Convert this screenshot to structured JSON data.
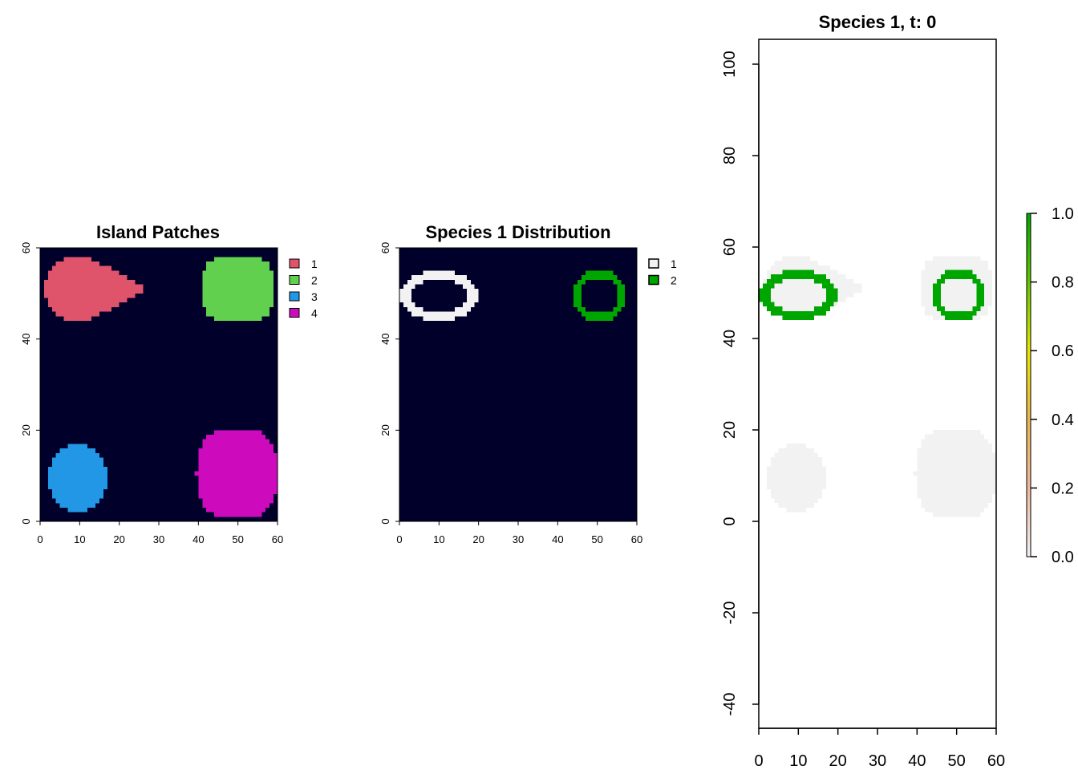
{
  "chart_data": [
    {
      "type": "heatmap",
      "title": "Island Patches",
      "xlim": [
        0,
        60
      ],
      "ylim": [
        0,
        60
      ],
      "xticks": [
        0,
        10,
        20,
        30,
        40,
        50,
        60
      ],
      "yticks": [
        0,
        20,
        40,
        60
      ],
      "background_color": "#00002B",
      "legend": [
        {
          "label": "1",
          "color": "#DF536B"
        },
        {
          "label": "2",
          "color": "#61D04F"
        },
        {
          "label": "3",
          "color": "#2297E6"
        },
        {
          "label": "4",
          "color": "#CD0BBC"
        }
      ],
      "patches": [
        {
          "label": "1",
          "shape": "teardrop",
          "x_range": [
            1,
            27.5
          ],
          "y_range": [
            43.5,
            58.5
          ]
        },
        {
          "label": "2",
          "shape": "blob",
          "x_range": [
            40.5,
            59.5
          ],
          "y_range": [
            43.5,
            58.5
          ]
        },
        {
          "label": "3",
          "shape": "ellipse",
          "x_range": [
            2,
            17
          ],
          "y_range": [
            2,
            17
          ]
        },
        {
          "label": "4",
          "shape": "blob",
          "x_range": [
            39.5,
            60
          ],
          "y_range": [
            0.5,
            20.5
          ]
        }
      ]
    },
    {
      "type": "heatmap",
      "title": "Species 1 Distribution",
      "xlim": [
        0,
        60
      ],
      "ylim": [
        0,
        60
      ],
      "xticks": [
        0,
        10,
        20,
        30,
        40,
        50,
        60
      ],
      "yticks": [
        0,
        20,
        40,
        60
      ],
      "background_color": "#00002B",
      "legend": [
        {
          "label": "1",
          "color": "#F2F2F2"
        },
        {
          "label": "2",
          "color": "#00A600"
        }
      ],
      "rings": [
        {
          "label": "1",
          "center": [
            10,
            49.5
          ],
          "radii": [
            9.5,
            5.5
          ]
        },
        {
          "label": "2",
          "center": [
            50.5,
            49.5
          ],
          "radii": [
            6.5,
            5.5
          ]
        }
      ]
    },
    {
      "type": "heatmap",
      "title": "Species 1, t: 0",
      "xlim": [
        0,
        60
      ],
      "ylim": [
        -45,
        105
      ],
      "xticks": [
        0,
        10,
        20,
        30,
        40,
        50,
        60
      ],
      "yticks": [
        -40,
        -20,
        0,
        20,
        40,
        60,
        80,
        100
      ],
      "patch_color": "#F2F2F2",
      "ring_color": "#00A600",
      "colorbar": {
        "ticks": [
          "0.0",
          "0.2",
          "0.4",
          "0.6",
          "0.8",
          "1.0"
        ],
        "colors": [
          "#F2F2F2",
          "#EEB99F",
          "#EAB64E",
          "#E6E600",
          "#63C600",
          "#00A600"
        ]
      }
    }
  ]
}
